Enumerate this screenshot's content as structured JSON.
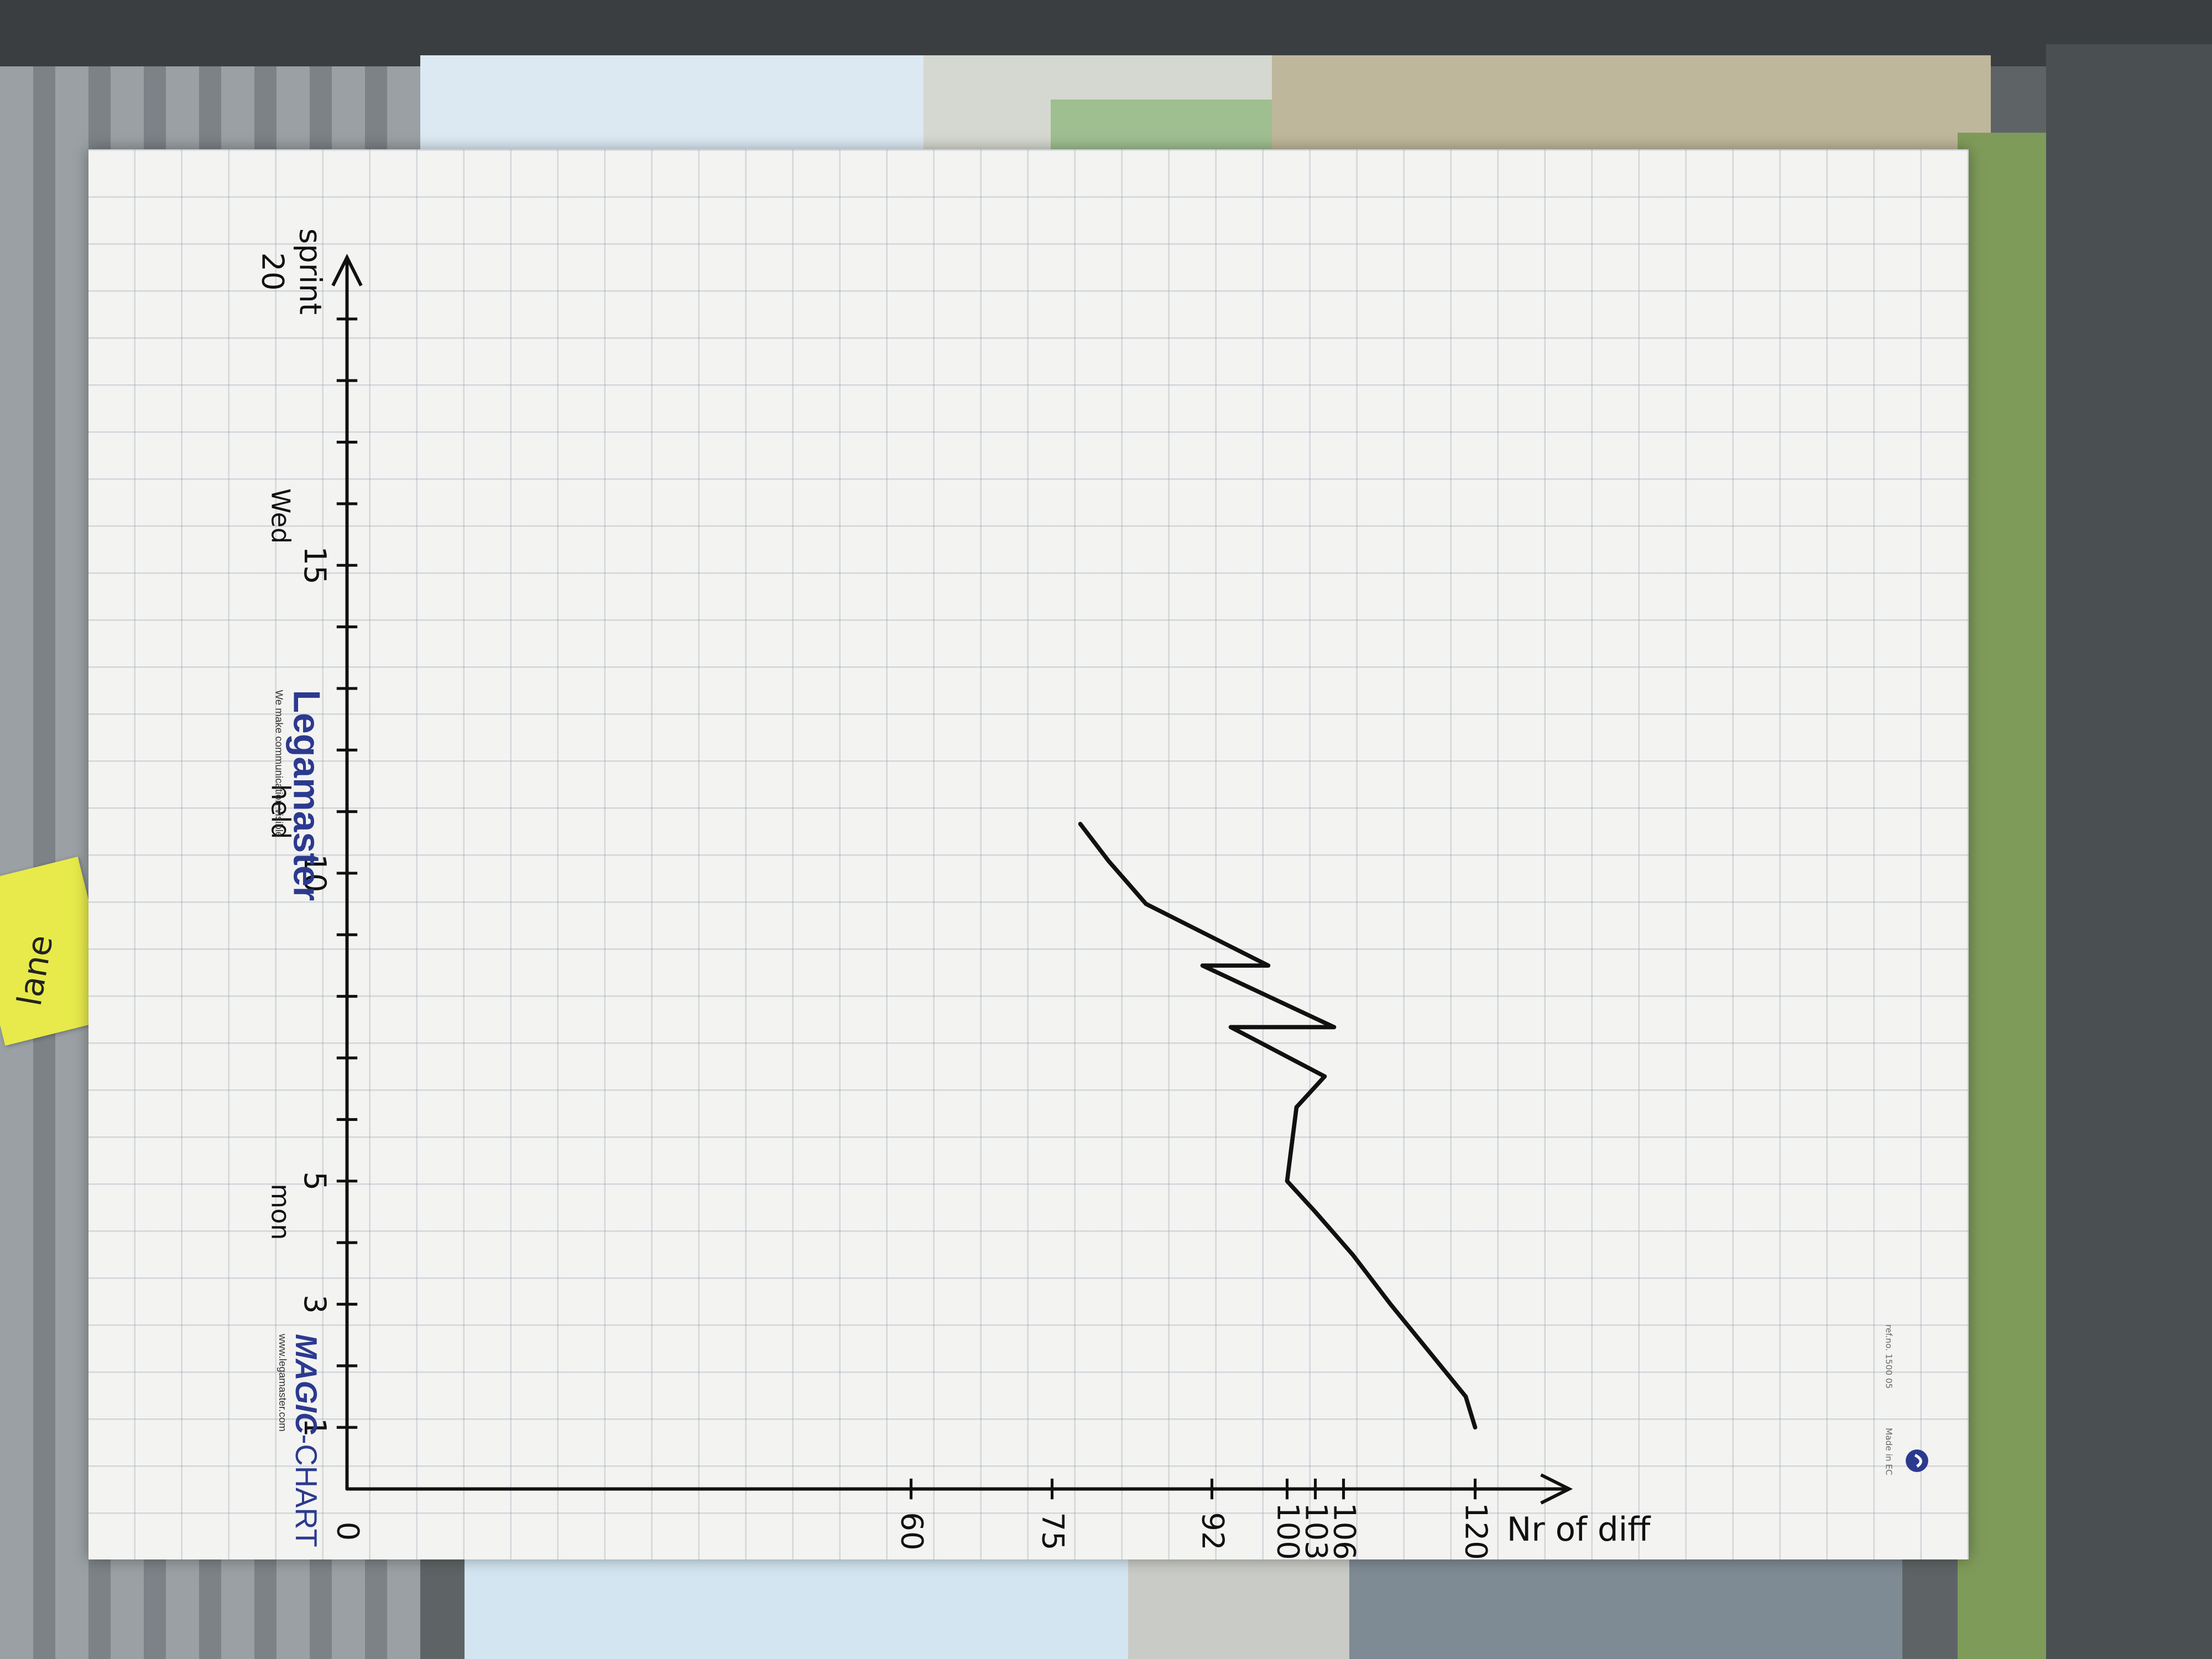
{
  "photo": {
    "sticky_note_text": "lane"
  },
  "flipchart": {
    "brand": {
      "magic_chart_prefix": "MAGIC",
      "magic_chart_suffix": "-CHART",
      "magic_chart_url": "www.legamaster.com",
      "legamaster_name": "Legamaster",
      "legamaster_tagline": "We make communication visible",
      "ref_text": "ref.no. 1500 05",
      "made_in": "Made in EC"
    }
  },
  "chart_data": {
    "type": "line",
    "title": "",
    "ylabel": "Nr of diff",
    "xlabel": "sprint",
    "x_axis_end_extra_label": "20",
    "y_tick_labels": [
      "120",
      "106",
      "103",
      "100",
      "92",
      "75",
      "60",
      "0"
    ],
    "x_tick_labels": [
      "1",
      "3",
      "5",
      "10",
      "15"
    ],
    "x_annotations": [
      {
        "x": 4.5,
        "text": "mon"
      },
      {
        "x": 11,
        "text": "held"
      },
      {
        "x": 15.8,
        "text": "Wed"
      }
    ],
    "ylim": [
      0,
      130
    ],
    "xlim": [
      0,
      20
    ],
    "series": [
      {
        "x": [
          1,
          1.5,
          3,
          3.8,
          4.5,
          5,
          6.2,
          6.7,
          7.5,
          7.5,
          8.5,
          8.5,
          9.5,
          10.2,
          10.8
        ],
        "y": [
          120,
          119,
          111,
          107,
          103,
          100,
          101,
          104,
          94,
          105,
          91,
          98,
          85,
          81,
          78
        ]
      }
    ],
    "grid": true,
    "legend": "none"
  }
}
